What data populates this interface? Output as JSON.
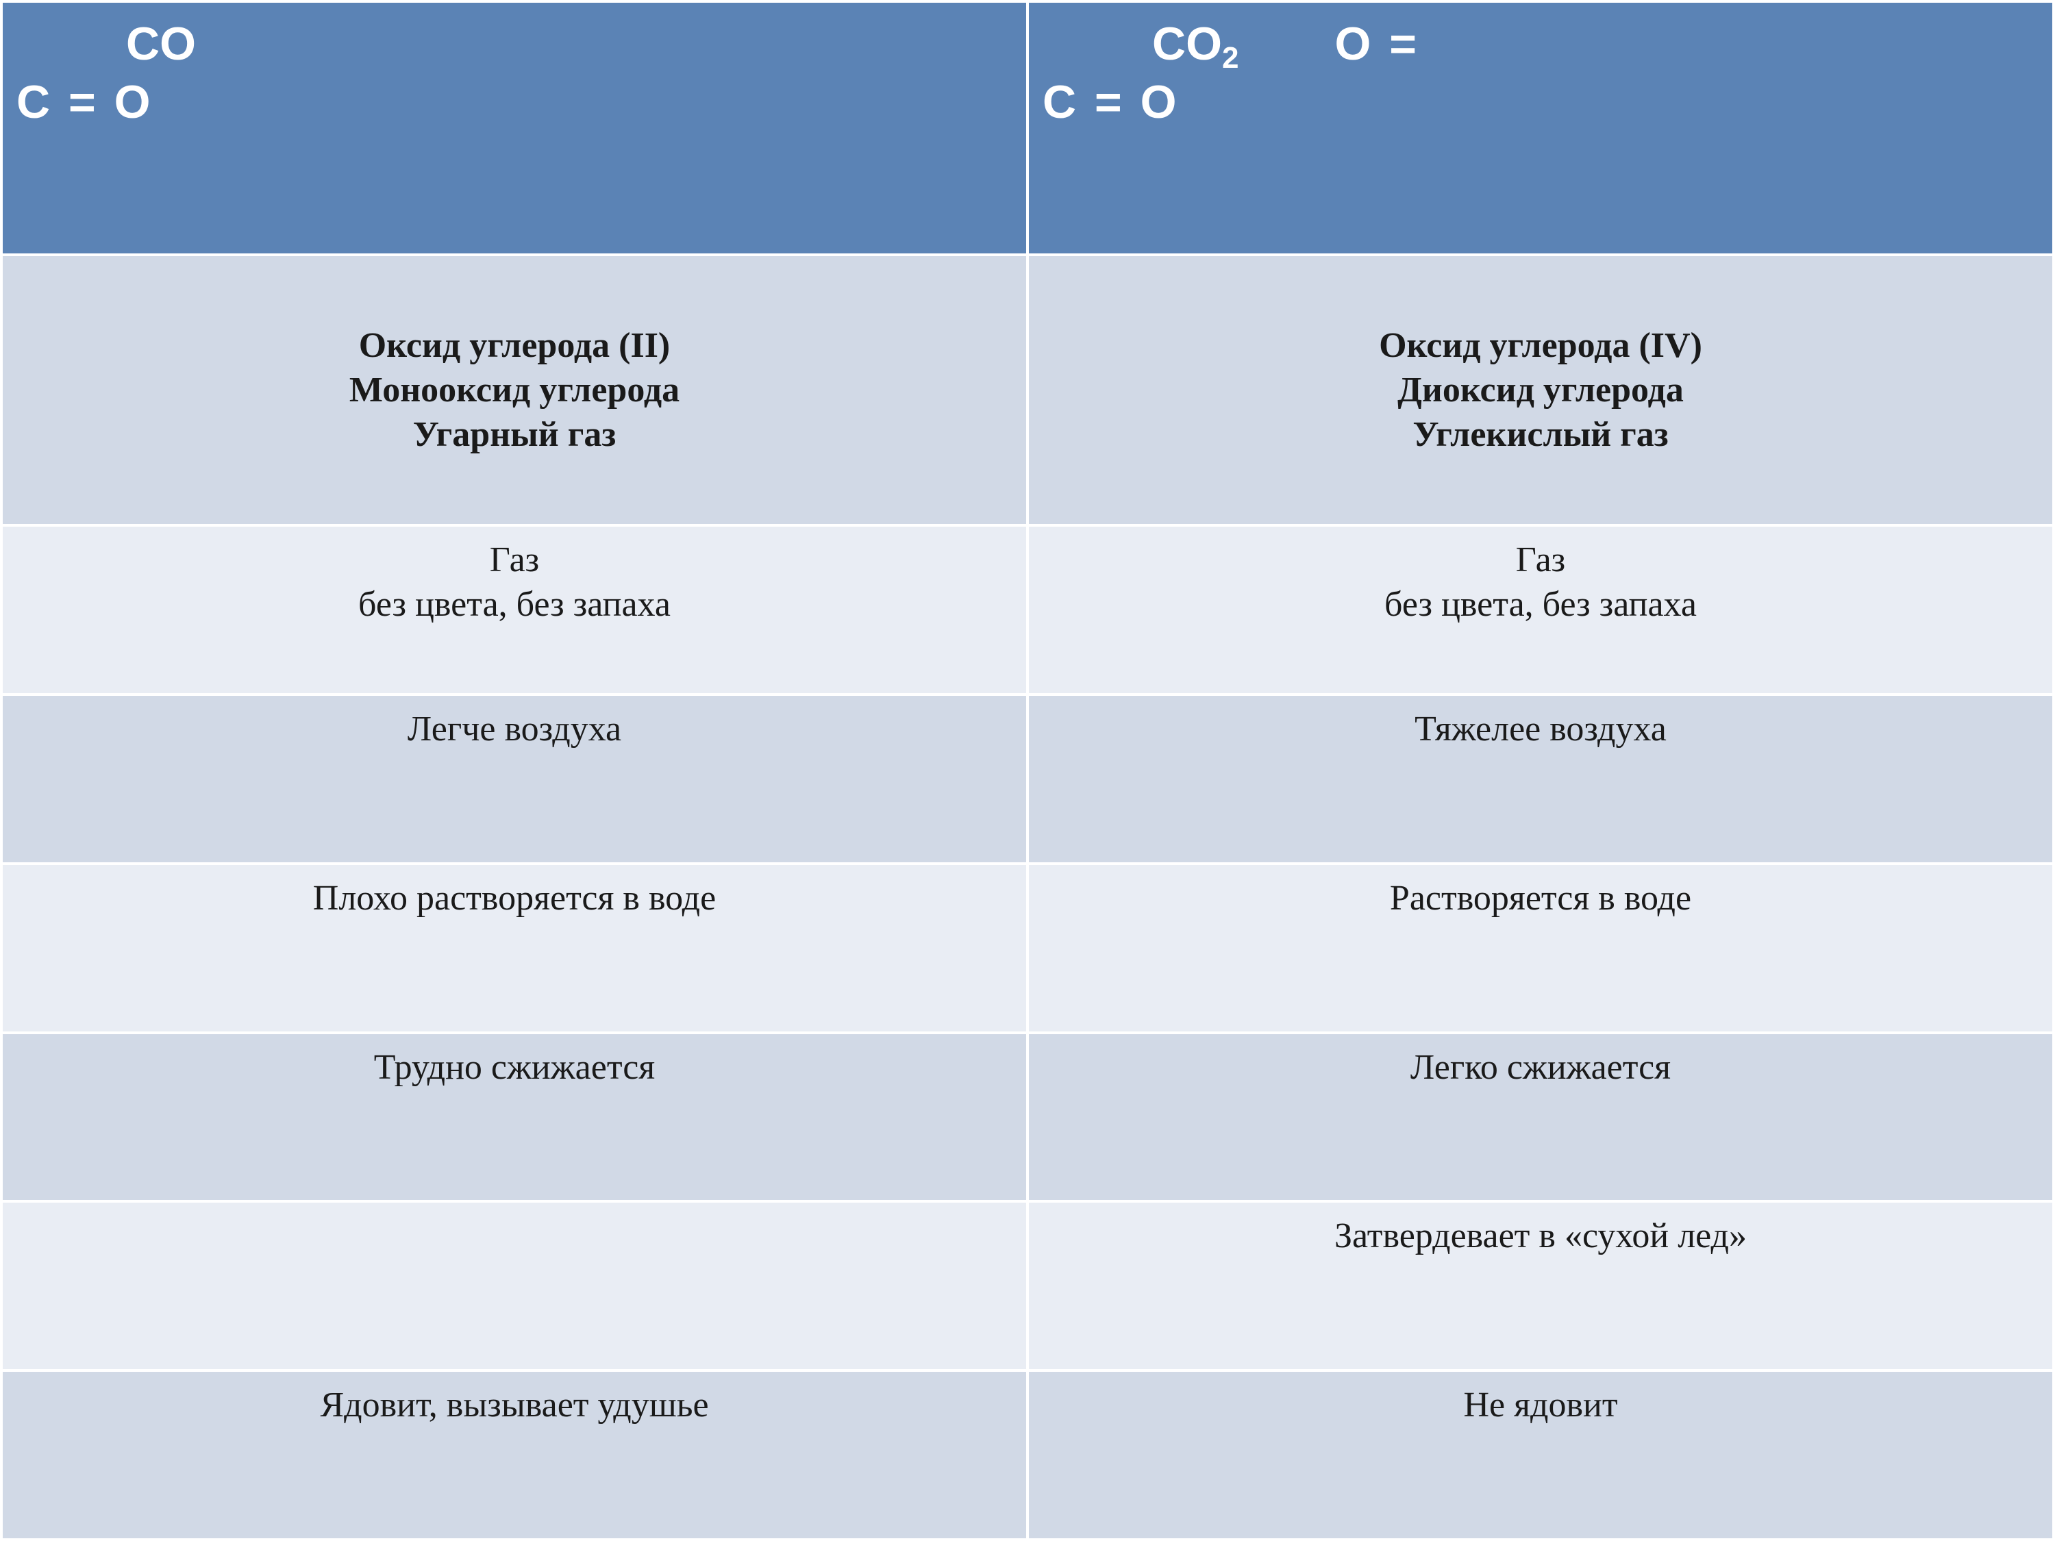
{
  "colors": {
    "header_bg": "#5b83b5",
    "row_dark": "#d1d9e6",
    "row_light": "#e9edf4",
    "border": "#ffffff",
    "text": "#1a1a1a",
    "header_text": "#ffffff"
  },
  "header": {
    "left": {
      "formula_top": "CO",
      "formula_bottom": "C = O"
    },
    "right": {
      "formula_top": "CO",
      "formula_top_sub": "2",
      "formula_extra": "O =",
      "formula_bottom": "C = O"
    }
  },
  "names": {
    "left": {
      "line1": "Оксид углерода (II)",
      "line2": "Монооксид углерода",
      "line3": "Угарный газ"
    },
    "right": {
      "line1": "Оксид углерода (IV)",
      "line2": "Диоксид углерода",
      "line3": "Углекислый газ"
    }
  },
  "properties": [
    {
      "left_line1": "Газ",
      "left_line2": "без цвета, без запаха",
      "right_line1": "Газ",
      "right_line2": "без цвета, без запаха",
      "bg": "light"
    },
    {
      "left_line1": "Легче воздуха",
      "left_line2": "",
      "right_line1": "Тяжелее воздуха",
      "right_line2": "",
      "bg": "dark"
    },
    {
      "left_line1": "Плохо растворяется в воде",
      "left_line2": "",
      "right_line1": "Растворяется в воде",
      "right_line2": "",
      "bg": "light"
    },
    {
      "left_line1": "Трудно сжижается",
      "left_line2": "",
      "right_line1": "Легко сжижается",
      "right_line2": "",
      "bg": "dark"
    },
    {
      "left_line1": "",
      "left_line2": "",
      "right_line1": "Затвердевает в «сухой лед»",
      "right_line2": "",
      "bg": "light"
    },
    {
      "left_line1": "Ядовит, вызывает удушье",
      "left_line2": "",
      "right_line1": "Не ядовит",
      "right_line2": "",
      "bg": "dark"
    }
  ]
}
